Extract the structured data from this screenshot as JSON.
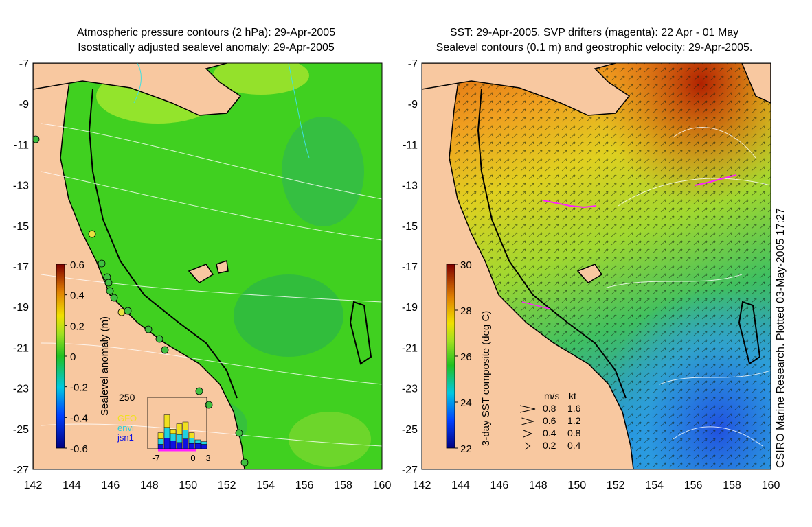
{
  "titles": {
    "left_line1": "Atmospheric pressure contours (2 hPa): 29-Apr-2005",
    "left_line2": "Isostatically adjusted sealevel anomaly: 29-Apr-2005",
    "right_line1": "SST: 29-Apr-2005. SVP drifters (magenta): 22 Apr - 01 May",
    "right_line2": "Sealevel contours (0.1 m) and geostrophic velocity: 29-Apr-2005."
  },
  "credit": "CSIRO Marine Research. Plotted 03-May-2005 17:27",
  "axes": {
    "lon_ticks": [
      "142",
      "144",
      "146",
      "148",
      "150",
      "152",
      "154",
      "156",
      "158",
      "160"
    ],
    "lat_ticks": [
      "-7",
      "-9",
      "-11",
      "-13",
      "-15",
      "-17",
      "-19",
      "-21",
      "-23",
      "-25",
      "-27"
    ],
    "lon_range": [
      142,
      160
    ],
    "lat_range": [
      -27,
      -7
    ]
  },
  "left_colorbar": {
    "label": "Sealevel anomaly (m)",
    "ticks": [
      "0.6",
      "0.4",
      "0.2",
      "0",
      "-0.2",
      "-0.4",
      "-0.6"
    ],
    "range": [
      -0.6,
      0.6
    ]
  },
  "right_colorbar": {
    "label": "3-day SST composite (deg C)",
    "ticks": [
      "30",
      "28",
      "26",
      "24",
      "22"
    ],
    "range": [
      22,
      30
    ]
  },
  "histogram": {
    "ymax_label": "250",
    "x_labels": [
      "-7",
      "0",
      "3"
    ],
    "legend": [
      {
        "text": "GFO",
        "color": "#f0e020"
      },
      {
        "text": "envi",
        "color": "#20d0e0"
      },
      {
        "text": "jsn1",
        "color": "#1010e0"
      }
    ],
    "bins": [
      {
        "jsn1": 25,
        "envi": 30,
        "gfo": 35
      },
      {
        "jsn1": 60,
        "envi": 60,
        "gfo": 70
      },
      {
        "jsn1": 45,
        "envi": 40,
        "gfo": 25
      },
      {
        "jsn1": 35,
        "envi": 45,
        "gfo": 60
      },
      {
        "jsn1": 55,
        "envi": 50,
        "gfo": 45
      },
      {
        "jsn1": 30,
        "envi": 30,
        "gfo": 30
      },
      {
        "jsn1": 30,
        "envi": 20,
        "gfo": 0
      },
      {
        "jsn1": 25,
        "envi": 15,
        "gfo": 0
      }
    ]
  },
  "velocity_legend": {
    "header": [
      "m/s",
      "kt"
    ],
    "rows": [
      {
        "ms": "0.8",
        "kt": "1.6"
      },
      {
        "ms": "0.6",
        "kt": "1.2"
      },
      {
        "ms": "0.4",
        "kt": "0.8"
      },
      {
        "ms": "0.2",
        "kt": "0.4"
      }
    ]
  },
  "colors": {
    "land": "#f8c8a0",
    "sla_mid": "#40d020",
    "sst_warm": "#e07010",
    "sst_cool": "#2060e0",
    "drifter": "#ff20ff",
    "coast": "#000000"
  }
}
